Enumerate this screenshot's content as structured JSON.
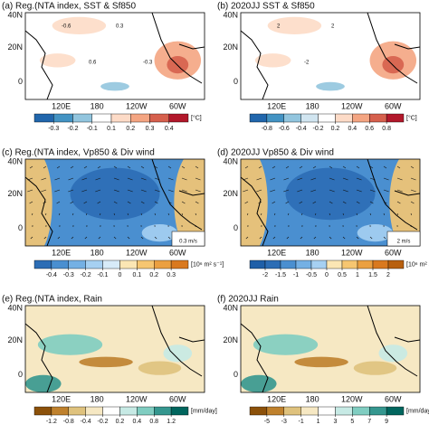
{
  "figure": {
    "lat_labels": [
      "40N",
      "20N",
      "0"
    ],
    "lon_labels": [
      "120E",
      "180",
      "120W",
      "60W"
    ],
    "panels": [
      {
        "title": "(a) Reg.(NTA index, SST & Sf850",
        "kind": "sst",
        "annotations": [
          "-0.6",
          "0.6",
          "0.3",
          "-0.3"
        ],
        "colorbar": {
          "ticks": [
            -0.3,
            -0.2,
            -0.1,
            0.1,
            0.2,
            0.3,
            0.4
          ],
          "unit": "[°C]",
          "colors": [
            "#2166ac",
            "#4393c3",
            "#92c5de",
            "#ffffff",
            "#fddbc7",
            "#f4a582",
            "#d6604d",
            "#b2182b"
          ]
        }
      },
      {
        "title": "(b) 2020JJ SST & Sf850",
        "kind": "sst",
        "annotations": [
          "2",
          "-2",
          "2"
        ],
        "colorbar": {
          "ticks": [
            -0.8,
            -0.6,
            -0.4,
            -0.2,
            0.2,
            0.4,
            0.6,
            0.8
          ],
          "unit": "[°C]",
          "colors": [
            "#2166ac",
            "#4393c3",
            "#92c5de",
            "#d1e5f0",
            "#ffffff",
            "#fddbc7",
            "#f4a582",
            "#d6604d",
            "#b2182b"
          ]
        }
      },
      {
        "title": "(c) Reg.(NTA index, Vp850 & Div wind",
        "kind": "vp",
        "vector_label": "0.3 m/s",
        "colorbar": {
          "ticks": [
            -0.4,
            -0.3,
            -0.2,
            -0.1,
            0,
            0.1,
            0.2,
            0.3
          ],
          "unit": "[10⁶ m² s⁻¹]",
          "colors": [
            "#2c6db5",
            "#4a8fd0",
            "#74b0e4",
            "#a6d0f2",
            "#d7ebf9",
            "#fbe6b4",
            "#f6c671",
            "#eba041",
            "#d9791f"
          ]
        }
      },
      {
        "title": "(d) 2020JJ Vp850 & Div wind",
        "kind": "vp",
        "vector_label": "2 m/s",
        "colorbar": {
          "ticks": [
            -2,
            -1.5,
            -1,
            -0.5,
            0,
            0.5,
            1,
            1.5,
            2
          ],
          "unit": "[10⁶ m² s⁻¹]",
          "colors": [
            "#1f5fa8",
            "#2c6db5",
            "#4a8fd0",
            "#74b0e4",
            "#a6d0f2",
            "#fbe6b4",
            "#f6c671",
            "#eba041",
            "#d9791f",
            "#b8600f"
          ]
        }
      },
      {
        "title": "(e) Reg.(NTA index, Rain",
        "kind": "rain",
        "colorbar": {
          "ticks": [
            -1.2,
            -0.8,
            -0.4,
            -0.2,
            0.2,
            0.4,
            0.8,
            1.2
          ],
          "unit": "[mm/day]",
          "colors": [
            "#8c510a",
            "#bf812d",
            "#dfc27d",
            "#f6e8c3",
            "#ffffff",
            "#c7eae5",
            "#80cdc1",
            "#35978f",
            "#01665e"
          ]
        }
      },
      {
        "title": "(f) 2020JJ Rain",
        "kind": "rain",
        "colorbar": {
          "ticks": [
            -5,
            -3,
            -1,
            1,
            3,
            5,
            7,
            9
          ],
          "unit": "[mm/day]",
          "colors": [
            "#8c510a",
            "#bf812d",
            "#dfc27d",
            "#f6e8c3",
            "#ffffff",
            "#c7eae5",
            "#80cdc1",
            "#35978f",
            "#01665e"
          ]
        }
      }
    ]
  }
}
